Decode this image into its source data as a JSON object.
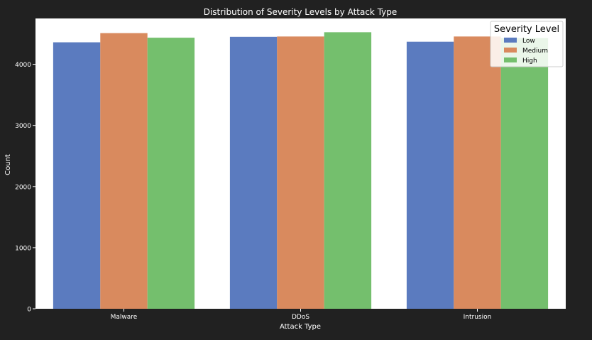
{
  "chart_data": {
    "type": "bar",
    "title": "Distribution of Severity Levels by Attack Type",
    "xlabel": "Attack Type",
    "ylabel": "Count",
    "categories": [
      "Malware",
      "DDoS",
      "Intrusion"
    ],
    "series": [
      {
        "name": "Low",
        "color": "#5b7bbf",
        "values": [
          4360,
          4450,
          4370
        ]
      },
      {
        "name": "Medium",
        "color": "#d98a5e",
        "values": [
          4510,
          4455,
          4455
        ]
      },
      {
        "name": "High",
        "color": "#74bf6d",
        "values": [
          4435,
          4525,
          4430
        ]
      }
    ],
    "ylim": [
      0,
      4750
    ],
    "yticks": [
      0,
      1000,
      2000,
      3000,
      4000
    ],
    "grid": false,
    "legend": {
      "title": "Severity Level",
      "placement": "top-right"
    },
    "colors": {
      "background": "#212121",
      "plot_area": "#ffffff",
      "text": "#ffffff"
    }
  }
}
